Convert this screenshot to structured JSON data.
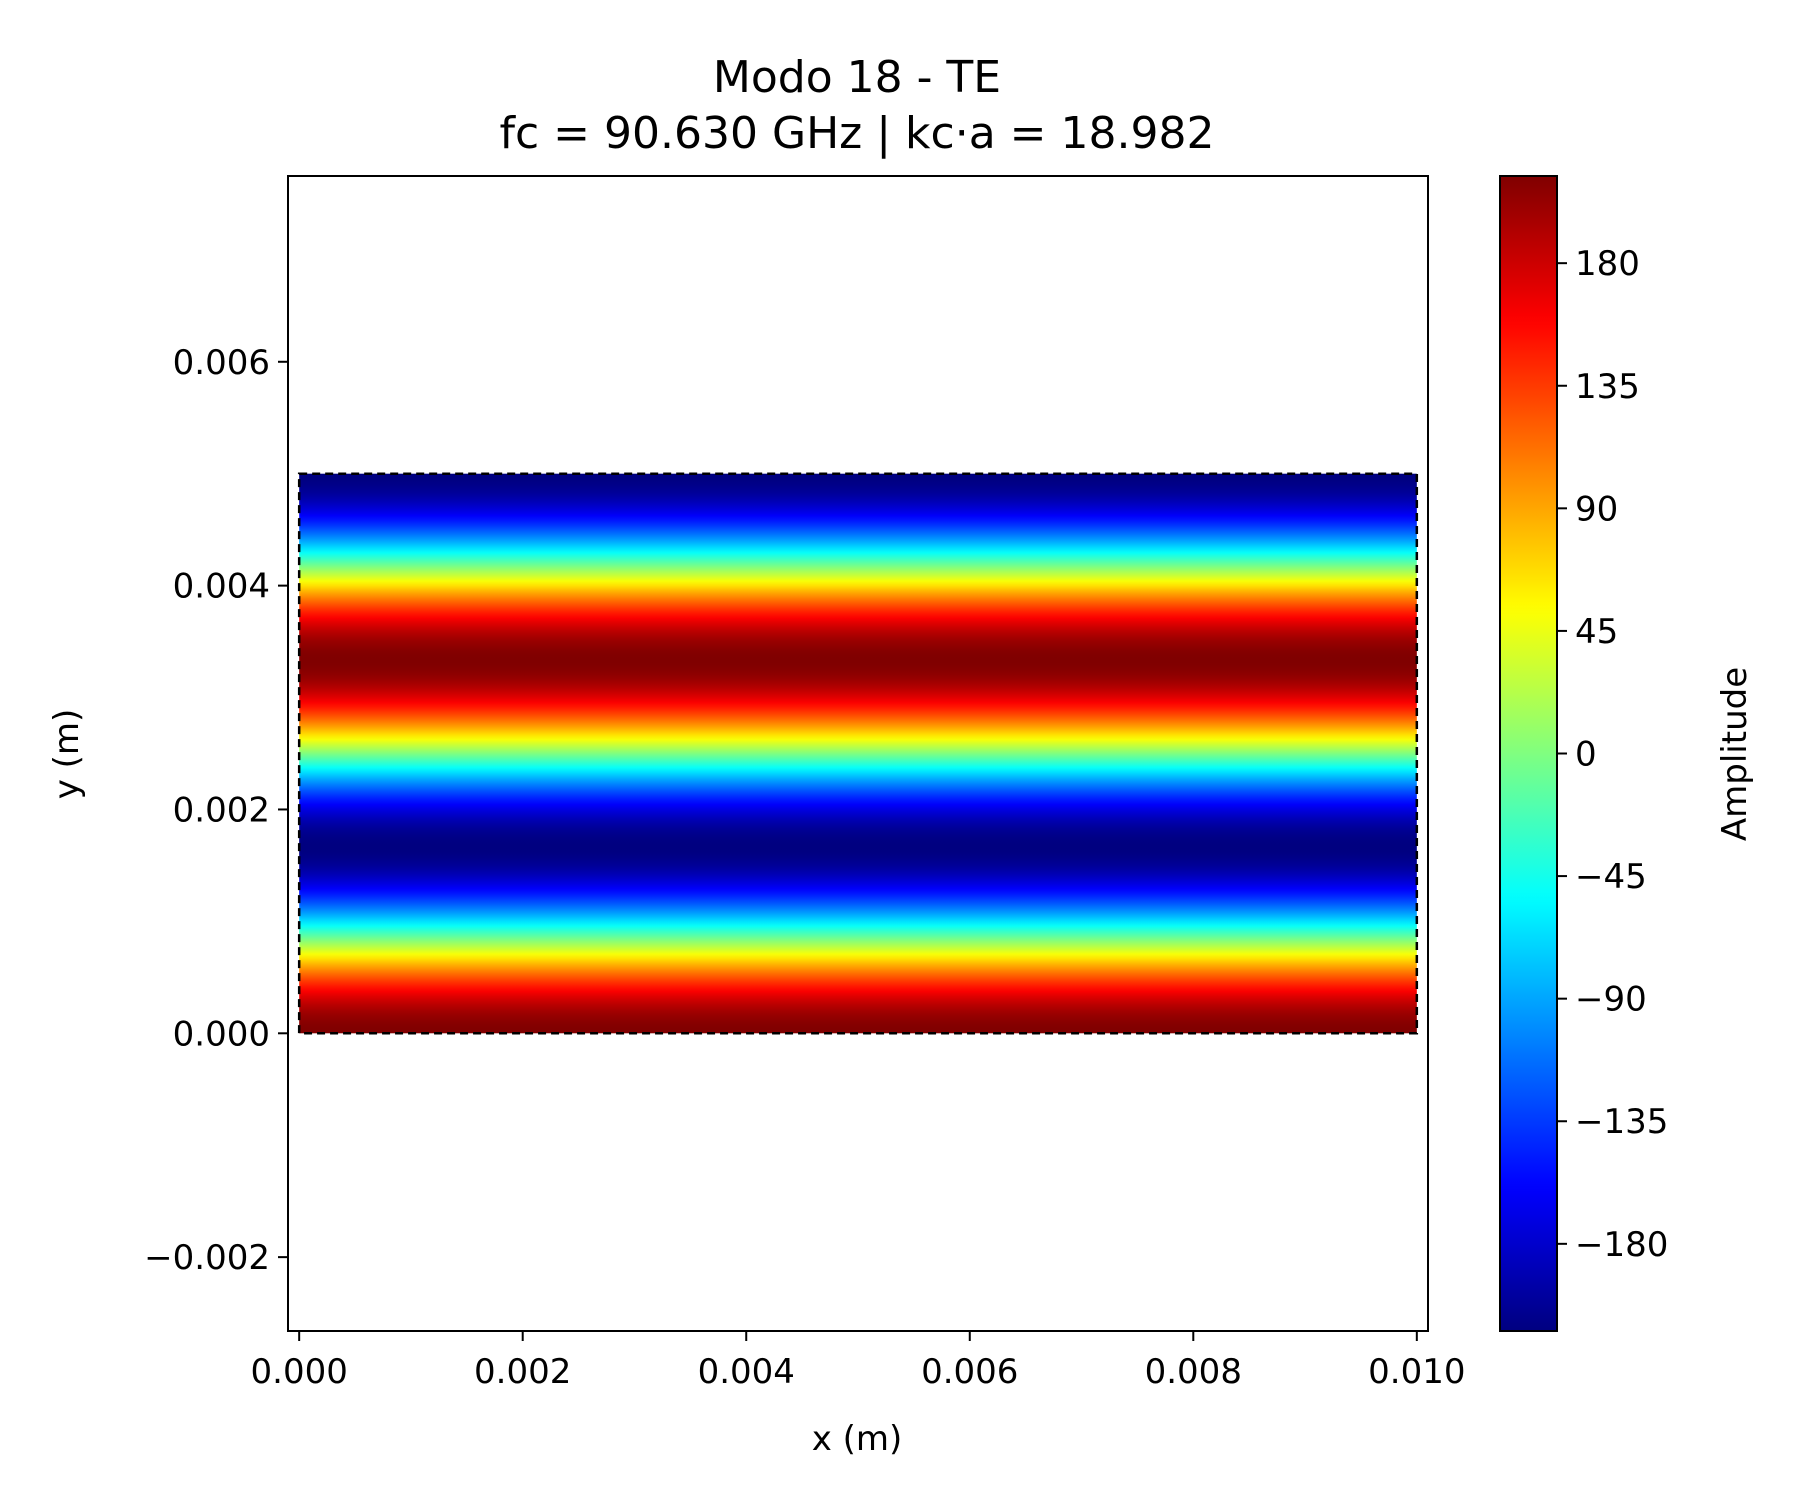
{
  "chart_data": {
    "type": "heatmap",
    "title": "Modo 18 - TE",
    "subtitle": "fc = 90.630 GHz | kc·a = 18.982",
    "xlabel": "x (m)",
    "ylabel": "y (m)",
    "xlim": [
      -0.0001,
      0.0101
    ],
    "ylim": [
      -0.00266,
      0.00766
    ],
    "x_ticks": [
      0.0,
      0.002,
      0.004,
      0.006,
      0.008,
      0.01
    ],
    "x_tick_labels": [
      "0.000",
      "0.002",
      "0.004",
      "0.006",
      "0.008",
      "0.010"
    ],
    "y_ticks": [
      -0.002,
      0.0,
      0.002,
      0.004,
      0.006
    ],
    "y_tick_labels": [
      "−0.002",
      "0.000",
      "0.002",
      "0.004",
      "0.006"
    ],
    "colormap": "jet",
    "guide_extent": {
      "x": [
        0.0,
        0.01
      ],
      "y": [
        0.0,
        0.005
      ]
    },
    "guide_outline": "dashed black",
    "field": {
      "form": "A * cos(3*pi*y/0.005) with slight wavelet variation along x",
      "y_peaks_max": [
        0.0,
        0.00333
      ],
      "y_peaks_min": [
        0.00167,
        0.005
      ],
      "amplitude_max": 212,
      "amplitude_min": -212
    },
    "colorbar": {
      "label": "Amplitude",
      "range": [
        -212,
        212
      ],
      "ticks": [
        180,
        135,
        90,
        45,
        0,
        -45,
        -90,
        -135,
        -180
      ],
      "tick_labels": [
        "180",
        "135",
        "90",
        "45",
        "0",
        "−45",
        "−90",
        "−135",
        "−180"
      ]
    },
    "grid": false
  }
}
